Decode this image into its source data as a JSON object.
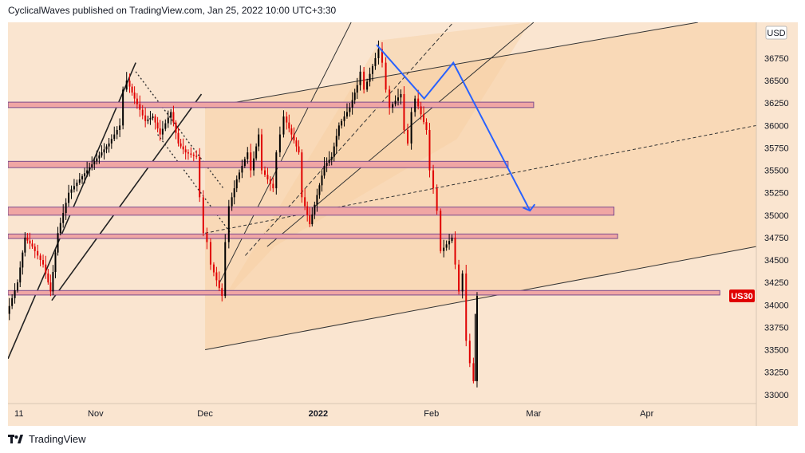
{
  "header": {
    "publish_line": "CyclicalWaves published on TradingView.com, Jan 25, 2022 10:00 UTC+3:30"
  },
  "footer": {
    "brand": "TradingView",
    "logo_icon": "tradingview-logo-icon"
  },
  "colors": {
    "panel_bg": "#fae5d0",
    "channel_fill": "#f7cfa2",
    "zone_fill": "#f0a6a4",
    "zone_border": "#7a4a8c",
    "candle_up": "#000000",
    "candle_down": "#e00000",
    "projection": "#2962ff",
    "price_label_bg": "#e00000"
  },
  "chart_data": {
    "type": "candlestick",
    "symbol_label": "US30",
    "currency": "USD",
    "current_price": 34100,
    "ylim": [
      32900,
      37150
    ],
    "y_ticks": [
      33000,
      33250,
      33500,
      33750,
      34000,
      34250,
      34500,
      34750,
      35000,
      35250,
      35500,
      35750,
      36000,
      36250,
      36500,
      36750
    ],
    "x_range": [
      "2021-10-08",
      "2022-05-01"
    ],
    "x_ticks": [
      {
        "date": "2021-10-11",
        "label": "11"
      },
      {
        "date": "2021-11-01",
        "label": "Nov"
      },
      {
        "date": "2021-12-01",
        "label": "Dec"
      },
      {
        "date": "2022-01-01",
        "label": "2022"
      },
      {
        "date": "2022-02-01",
        "label": "Feb"
      },
      {
        "date": "2022-03-01",
        "label": "Mar"
      },
      {
        "date": "2022-04-01",
        "label": "Apr"
      }
    ],
    "price_path": [
      [
        "2021-10-08",
        33900
      ],
      [
        "2021-10-11",
        34250
      ],
      [
        "2021-10-13",
        34750
      ],
      [
        "2021-10-15",
        34650
      ],
      [
        "2021-10-18",
        34450
      ],
      [
        "2021-10-20",
        34150
      ],
      [
        "2021-10-22",
        34800
      ],
      [
        "2021-10-25",
        35250
      ],
      [
        "2021-10-28",
        35400
      ],
      [
        "2021-11-01",
        35600
      ],
      [
        "2021-11-03",
        35700
      ],
      [
        "2021-11-05",
        35800
      ],
      [
        "2021-11-08",
        36000
      ],
      [
        "2021-11-09",
        36400
      ],
      [
        "2021-11-10",
        36500
      ],
      [
        "2021-11-12",
        36300
      ],
      [
        "2021-11-15",
        36050
      ],
      [
        "2021-11-17",
        36100
      ],
      [
        "2021-11-19",
        35900
      ],
      [
        "2021-11-22",
        36150
      ],
      [
        "2021-11-24",
        35800
      ],
      [
        "2021-11-26",
        35700
      ],
      [
        "2021-11-29",
        35650
      ],
      [
        "2021-11-30",
        35200
      ],
      [
        "2021-12-01",
        34800
      ],
      [
        "2021-12-02",
        34700
      ],
      [
        "2021-12-03",
        34450
      ],
      [
        "2021-12-06",
        34100
      ],
      [
        "2021-12-07",
        34700
      ],
      [
        "2021-12-08",
        35100
      ],
      [
        "2021-12-10",
        35400
      ],
      [
        "2021-12-13",
        35700
      ],
      [
        "2021-12-14",
        35500
      ],
      [
        "2021-12-16",
        35900
      ],
      [
        "2021-12-17",
        35500
      ],
      [
        "2021-12-20",
        35300
      ],
      [
        "2021-12-21",
        35700
      ],
      [
        "2021-12-22",
        35900
      ],
      [
        "2021-12-23",
        36100
      ],
      [
        "2021-12-27",
        35700
      ],
      [
        "2021-12-28",
        35200
      ],
      [
        "2021-12-30",
        34900
      ],
      [
        "2022-01-03",
        35550
      ],
      [
        "2022-01-05",
        35650
      ],
      [
        "2022-01-07",
        36000
      ],
      [
        "2022-01-10",
        36200
      ],
      [
        "2022-01-12",
        36450
      ],
      [
        "2022-01-13",
        36600
      ],
      [
        "2022-01-14",
        36400
      ],
      [
        "2022-01-17",
        36750
      ],
      [
        "2022-01-18",
        36850
      ],
      [
        "2022-01-19",
        36700
      ],
      [
        "2022-01-20",
        36400
      ],
      [
        "2022-01-21",
        36200
      ],
      [
        "2022-01-24",
        36350
      ],
      [
        "2022-01-25",
        35950
      ],
      [
        "2022-01-26",
        35800
      ],
      [
        "2022-01-27",
        36150
      ],
      [
        "2022-01-28",
        36300
      ],
      [
        "2022-01-31",
        35950
      ],
      [
        "2022-02-01",
        35500
      ],
      [
        "2022-02-02",
        35300
      ],
      [
        "2022-02-03",
        35050
      ],
      [
        "2022-02-04",
        34600
      ],
      [
        "2022-02-07",
        34750
      ],
      [
        "2022-02-08",
        34450
      ],
      [
        "2022-02-09",
        34150
      ],
      [
        "2022-02-10",
        34350
      ],
      [
        "2022-02-11",
        33600
      ],
      [
        "2022-02-12",
        33350
      ],
      [
        "2022-02-13",
        33150
      ],
      [
        "2022-02-14",
        34100
      ]
    ],
    "projection_path": [
      [
        "2022-01-17",
        36900
      ],
      [
        "2022-01-30",
        36300
      ],
      [
        "2022-02-07",
        36700
      ],
      [
        "2022-02-28",
        35050
      ]
    ],
    "horizontal_zones": [
      {
        "low": 36200,
        "high": 36260,
        "from": "2021-10-08",
        "to": "2022-03-01"
      },
      {
        "low": 35530,
        "high": 35600,
        "from": "2021-10-08",
        "to": "2022-02-22"
      },
      {
        "low": 35000,
        "high": 35090,
        "from": "2021-10-08",
        "to": "2022-03-23"
      },
      {
        "low": 34740,
        "high": 34790,
        "from": "2021-10-08",
        "to": "2022-03-24"
      },
      {
        "low": 34110,
        "high": 34160,
        "from": "2021-10-08",
        "to": "2022-04-21"
      }
    ],
    "channel": {
      "upper_start": [
        "2021-12-01",
        36200
      ],
      "upper_end": [
        "2022-04-15",
        37150
      ],
      "lower_start": [
        "2021-12-01",
        33500
      ],
      "lower_end": [
        "2022-05-01",
        34650
      ],
      "shaded_from": "2021-12-01"
    },
    "grid": false,
    "legend": "none"
  }
}
